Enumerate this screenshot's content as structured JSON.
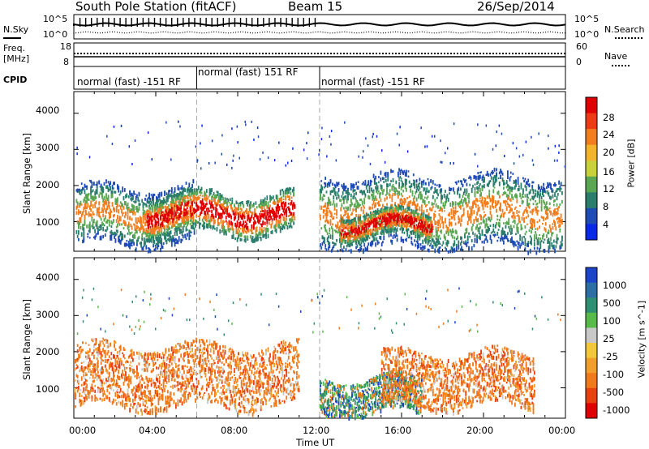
{
  "header": {
    "station": "South Pole Station (fitACF)",
    "beam": "Beam 15",
    "date": "26/Sep/2014"
  },
  "sky_panel": {
    "left_label": "N.Sky",
    "right_label": "N.Search",
    "left_ticks": [
      "10^5",
      "10^0"
    ],
    "right_ticks": [
      "10^5",
      "10^0"
    ]
  },
  "freq_panel": {
    "left_label_top": "Freq.",
    "left_label_bottom": "[MHz]",
    "right_label": "Nave",
    "left_ticks": [
      "18",
      "8"
    ],
    "right_ticks": [
      "60",
      "0"
    ]
  },
  "cpid": {
    "label": "CPID",
    "segments": [
      {
        "text": "normal (fast) -151 RF",
        "start_hr": 0,
        "end_hr": 6
      },
      {
        "text": "normal (fast) 151 RF",
        "start_hr": 6,
        "end_hr": 12
      },
      {
        "text": "normal (fast) -151 RF",
        "start_hr": 12,
        "end_hr": 24
      }
    ]
  },
  "axes": {
    "ylabel": "Slant Range [km]",
    "xlabel": "Time UT",
    "xticks": [
      "00:00",
      "04:00",
      "08:00",
      "12:00",
      "16:00",
      "20:00",
      "00:00"
    ],
    "yticks": [
      "1000",
      "2000",
      "3000",
      "4000"
    ]
  },
  "chart_data": [
    {
      "type": "heatmap",
      "title": "",
      "xlabel": "Time UT",
      "ylabel": "Slant Range [km]",
      "x_range_hours": [
        0,
        24
      ],
      "ylim": [
        180,
        4600
      ],
      "colorbar": {
        "label": "Power [dB]",
        "ticks": [
          "4",
          "8",
          "12",
          "16",
          "20",
          "24",
          "28"
        ],
        "colors": [
          "#0a28e8",
          "#1f4bb4",
          "#2b7d6c",
          "#5aa652",
          "#c9d13a",
          "#f2b42a",
          "#f07d1f",
          "#ee3a17",
          "#e00000"
        ]
      },
      "echo_regions": [
        {
          "t_start": 0.1,
          "t_end": 5.9,
          "r_min": 400,
          "r_max": 2000,
          "level": "mid"
        },
        {
          "t_start": 3.5,
          "t_end": 10.8,
          "r_min": 700,
          "r_max": 1800,
          "level": "high"
        },
        {
          "t_start": 12.0,
          "t_end": 23.9,
          "r_min": 300,
          "r_max": 2300,
          "level": "mid"
        },
        {
          "t_start": 13.0,
          "t_end": 17.5,
          "r_min": 600,
          "r_max": 1300,
          "level": "high"
        }
      ]
    },
    {
      "type": "heatmap",
      "title": "",
      "xlabel": "Time UT",
      "ylabel": "Slant Range [km]",
      "x_range_hours": [
        0,
        24
      ],
      "ylim": [
        180,
        4600
      ],
      "colorbar": {
        "label": "Velocity [m s^-1]",
        "ticks": [
          "1000",
          "500",
          "100",
          "25",
          "-25",
          "-100",
          "-500",
          "-1000"
        ],
        "colors": [
          "#1c44c8",
          "#2b6fa4",
          "#2f8f72",
          "#58ba48",
          "#c8c8c8",
          "#f2c83a",
          "#f0a02a",
          "#f07a1a",
          "#e84010",
          "#e00000"
        ]
      },
      "echo_regions": [
        {
          "t_start": 0.0,
          "t_end": 11.0,
          "r_min": 500,
          "r_max": 2200,
          "velocity": "negative"
        },
        {
          "t_start": 12.0,
          "t_end": 17.0,
          "r_min": 300,
          "r_max": 1300,
          "velocity": "mixed"
        },
        {
          "t_start": 15.0,
          "t_end": 22.5,
          "r_min": 500,
          "r_max": 2000,
          "velocity": "negative"
        }
      ]
    }
  ]
}
